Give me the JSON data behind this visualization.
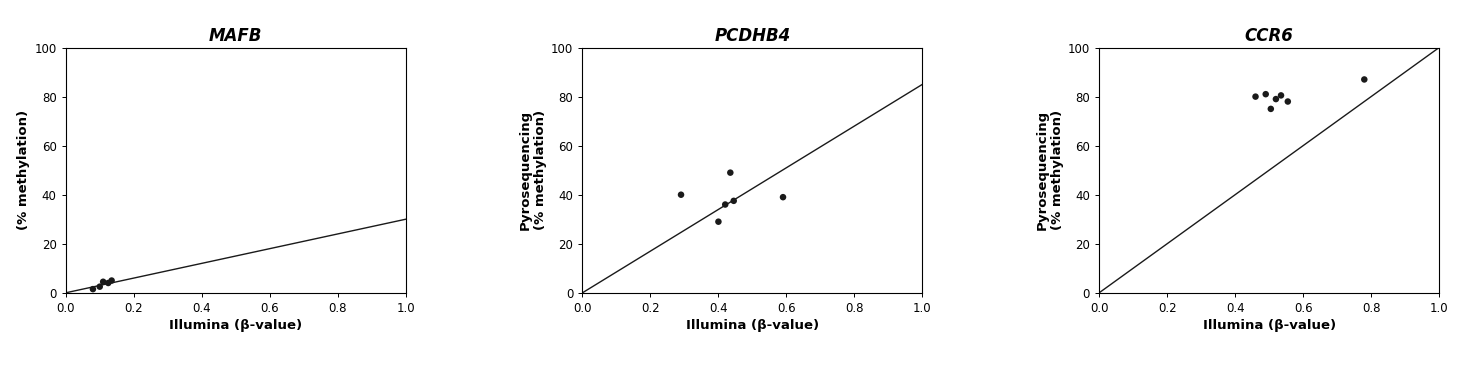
{
  "panels": [
    {
      "title": "MAFB",
      "ylabel_line1": "",
      "ylabel_line2": "(% methylation)",
      "ylabel_show_pyro": false,
      "xlabel": "Illumina (β-value)",
      "xlim": [
        0.0,
        1.0
      ],
      "ylim": [
        0.0,
        100.0
      ],
      "xticks": [
        0.0,
        0.2,
        0.4,
        0.6,
        0.8,
        1.0
      ],
      "yticks": [
        0,
        20,
        40,
        60,
        80,
        100
      ],
      "line": {
        "x0": 0.0,
        "y0": 0.0,
        "x1": 1.0,
        "y1": 30.0
      },
      "scatter_x": [
        0.08,
        0.1,
        0.11,
        0.125,
        0.135
      ],
      "scatter_y": [
        1.5,
        2.5,
        4.5,
        4.0,
        5.0
      ]
    },
    {
      "title": "PCDHB4",
      "ylabel_line1": "Pyrosequencing",
      "ylabel_line2": "(% methylation)",
      "ylabel_show_pyro": true,
      "xlabel": "Illumina (β-value)",
      "xlim": [
        0.0,
        1.0
      ],
      "ylim": [
        0.0,
        100.0
      ],
      "xticks": [
        0.0,
        0.2,
        0.4,
        0.6,
        0.8,
        1.0
      ],
      "yticks": [
        0,
        20,
        40,
        60,
        80,
        100
      ],
      "line": {
        "x0": 0.0,
        "y0": 0.0,
        "x1": 1.0,
        "y1": 85.0
      },
      "scatter_x": [
        0.29,
        0.4,
        0.42,
        0.435,
        0.445,
        0.59
      ],
      "scatter_y": [
        40.0,
        29.0,
        36.0,
        49.0,
        37.5,
        39.0
      ]
    },
    {
      "title": "CCR6",
      "ylabel_line1": "Pyrosequencing",
      "ylabel_line2": "(% methylation)",
      "ylabel_show_pyro": true,
      "xlabel": "Illumina (β-value)",
      "xlim": [
        0.0,
        1.0
      ],
      "ylim": [
        0.0,
        100.0
      ],
      "xticks": [
        0.0,
        0.2,
        0.4,
        0.6,
        0.8,
        1.0
      ],
      "yticks": [
        0,
        20,
        40,
        60,
        80,
        100
      ],
      "line": {
        "x0": 0.0,
        "y0": 0.0,
        "x1": 1.0,
        "y1": 100.0
      },
      "scatter_x": [
        0.46,
        0.49,
        0.505,
        0.52,
        0.535,
        0.555,
        0.78
      ],
      "scatter_y": [
        80.0,
        81.0,
        75.0,
        79.0,
        80.5,
        78.0,
        87.0
      ]
    }
  ],
  "background_color": "#ffffff",
  "scatter_color": "#1a1a1a",
  "line_color": "#1a1a1a",
  "scatter_size": 22,
  "title_fontsize": 12,
  "label_fontsize": 9.5,
  "tick_fontsize": 8.5
}
